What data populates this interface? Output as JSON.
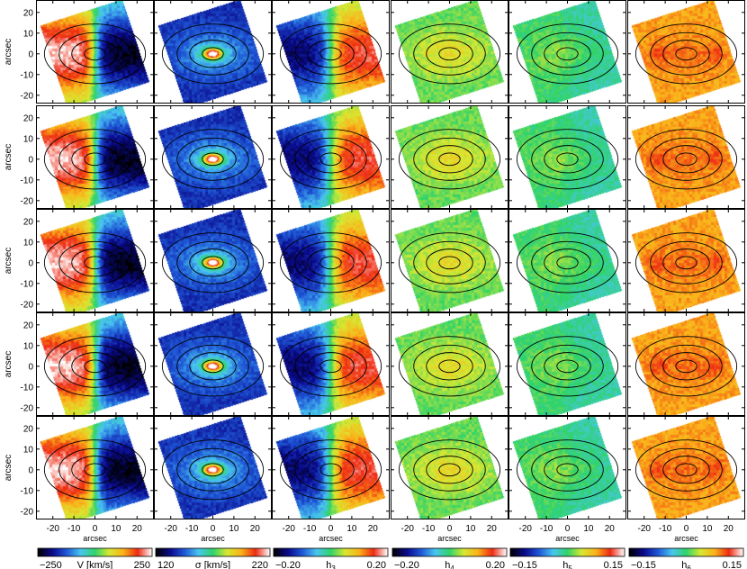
{
  "chart_data": {
    "type": "heatmap",
    "layout": {
      "rows": 5,
      "cols": 6
    },
    "axis_label": "arcsec",
    "x_range": [
      -28,
      28
    ],
    "y_range": [
      -24,
      26
    ],
    "x_ticks": [
      -20,
      -10,
      0,
      10,
      20
    ],
    "y_ticks": [
      20,
      10,
      0,
      -10,
      -20
    ],
    "contour_radii_arcsec": [
      5,
      11,
      17,
      24
    ],
    "contour_axis_ratio": 0.6,
    "colormap_stops": [
      "#000000",
      "#0a0a8c",
      "#1f57d6",
      "#49c6f0",
      "#2fd36a",
      "#d8e832",
      "#fbb21a",
      "#ee2a12",
      "#ffffff"
    ],
    "panels": [
      {
        "field": "velocity",
        "quantity": "V",
        "unit": "[km/s]",
        "vmin": -250,
        "vmax": 250
      },
      {
        "field": "dispersion",
        "quantity": "σ",
        "unit": "[km/s]",
        "vmin": 120,
        "vmax": 220
      },
      {
        "field": "h3",
        "quantity": "h",
        "subscript": "3",
        "vmin": -0.2,
        "vmax": 0.2
      },
      {
        "field": "h4",
        "quantity": "h",
        "subscript": "4",
        "vmin": -0.2,
        "vmax": 0.2
      },
      {
        "field": "h5",
        "quantity": "h",
        "subscript": "5",
        "vmin": -0.15,
        "vmax": 0.15
      },
      {
        "field": "h6",
        "quantity": "h",
        "subscript": "6",
        "vmin": -0.15,
        "vmax": 0.15
      }
    ],
    "colorbars": [
      {
        "min_label": "−250",
        "mid_label": "V [km/s]",
        "max_label": "250"
      },
      {
        "min_label": "120",
        "mid_label": "σ [km/s]",
        "max_label": "220"
      },
      {
        "min_label": "−0.20",
        "mid_main": "h",
        "mid_sub": "3",
        "max_label": "0.20"
      },
      {
        "min_label": "−0.20",
        "mid_main": "h",
        "mid_sub": "4",
        "max_label": "0.20"
      },
      {
        "min_label": "−0.15",
        "mid_main": "h",
        "mid_sub": "5",
        "max_label": "0.15"
      },
      {
        "min_label": "−0.15",
        "mid_main": "h",
        "mid_sub": "6",
        "max_label": "0.15"
      }
    ]
  }
}
